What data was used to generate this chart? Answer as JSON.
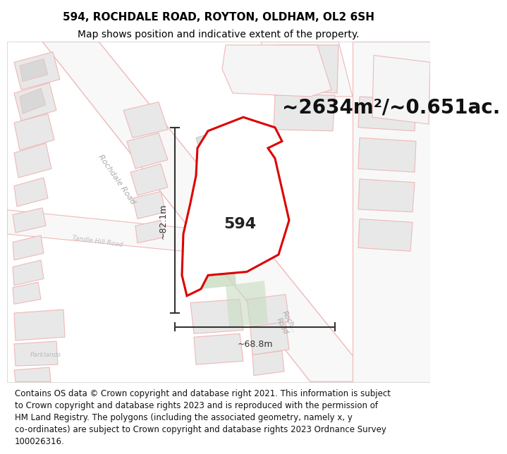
{
  "title_line1": "594, ROCHDALE ROAD, ROYTON, OLDHAM, OL2 6SH",
  "title_line2": "Map shows position and indicative extent of the property.",
  "area_text": "~2634m²/~0.651ac.",
  "property_label": "594",
  "dim_horizontal": "~68.8m",
  "dim_vertical": "~82.1m",
  "footer_lines": [
    "Contains OS data © Crown copyright and database right 2021. This information is subject",
    "to Crown copyright and database rights 2023 and is reproduced with the permission of",
    "HM Land Registry. The polygons (including the associated geometry, namely x, y",
    "co-ordinates) are subject to Crown copyright and database rights 2023 Ordnance Survey",
    "100026316."
  ],
  "map_bg": "#ffffff",
  "road_fill": "#f5f5f5",
  "road_stroke": "#f0b8b8",
  "building_fill": "#e8e8e8",
  "building_stroke": "#d0c0c0",
  "property_fill": "#ffffff",
  "property_stroke": "#dd0000",
  "green_fill": "#c8dcc0",
  "dim_color": "#333333",
  "text_color_road": "#aaaaaa",
  "title_fontsize": 11,
  "subtitle_fontsize": 10,
  "area_fontsize": 20,
  "label_fontsize": 16,
  "footer_fontsize": 8.5
}
